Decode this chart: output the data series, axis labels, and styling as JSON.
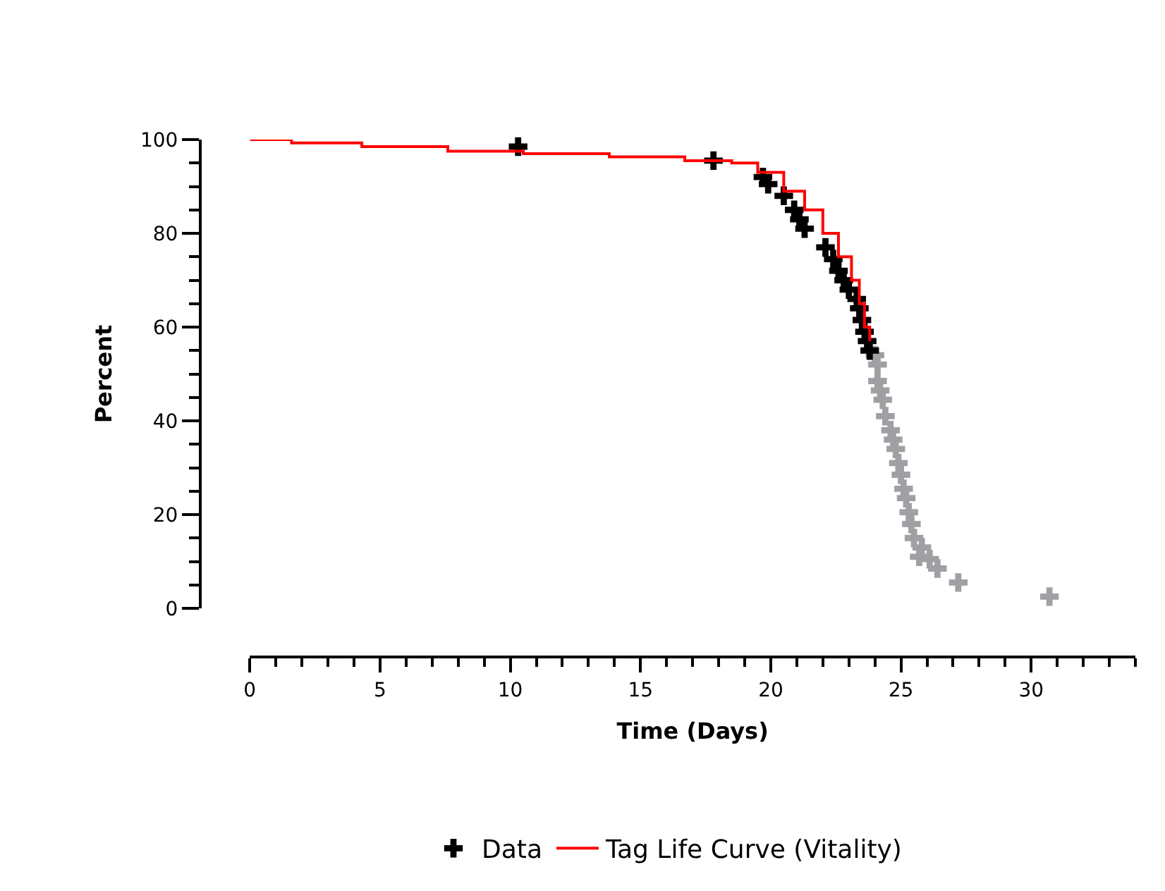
{
  "chart_data": {
    "type": "scatter",
    "xlabel": "Time (Days)",
    "ylabel": "Percent",
    "legend": "bottom",
    "marker": "cross",
    "xlim": [
      0,
      34
    ],
    "ylim": [
      0,
      100
    ],
    "xticks": [
      0,
      5,
      10,
      15,
      20,
      25,
      30
    ],
    "yticks": [
      0,
      20,
      40,
      60,
      80,
      100
    ],
    "series": [
      {
        "color": "#a0a0a4",
        "x": [
          24.0,
          24.1,
          24.1,
          24.2,
          24.3,
          24.4,
          24.6,
          24.7,
          24.8,
          24.9,
          25.0,
          25.1,
          25.2,
          25.3,
          25.4,
          25.5,
          25.7,
          25.8,
          26.1,
          26.4,
          27.2,
          30.7
        ],
        "values": [
          54,
          52,
          48.5,
          46.5,
          44.5,
          41,
          38,
          36,
          34,
          31,
          28.5,
          25.5,
          23.5,
          20.5,
          18,
          15,
          11,
          13,
          10.5,
          8.5,
          5.5,
          2.5
        ]
      },
      {
        "name": "Data",
        "color": "#000000",
        "x": [
          10.3,
          17.8,
          19.7,
          19.9,
          20.5,
          20.9,
          21.1,
          21.3,
          22.1,
          22.4,
          22.6,
          22.8,
          23.0,
          23.3,
          23.4,
          23.5,
          23.6,
          23.7,
          23.8
        ],
        "values": [
          98.5,
          95.5,
          92,
          90.5,
          88,
          85,
          83,
          81,
          77,
          74.5,
          72,
          70,
          68,
          66,
          64,
          61.5,
          59,
          57,
          55
        ]
      },
      {
        "type": "step",
        "name": "Tag Life Curve (Vitality)",
        "color": "#ff0000",
        "marker": "none",
        "x": [
          0,
          1.6,
          4.3,
          7.6,
          10.5,
          13.8,
          16.7,
          18.5,
          19.5,
          20.5,
          21.3,
          22.0,
          22.6,
          23.1,
          23.4,
          23.6,
          23.8
        ],
        "values": [
          100,
          99.3,
          98.5,
          97.5,
          97,
          96.3,
          95.5,
          95,
          93,
          89,
          85,
          80,
          75,
          70,
          65,
          60,
          57
        ]
      }
    ]
  }
}
